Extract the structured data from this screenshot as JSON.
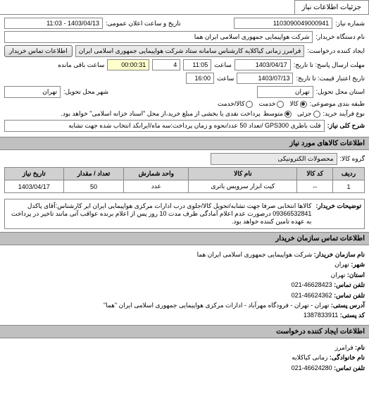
{
  "tabs": {
    "active": "جزئیات اطلاعات نیاز"
  },
  "header": {
    "req_no_label": "شماره نیاز:",
    "req_no": "1103090049000941",
    "public_date_label": "تاریخ و ساعت اعلان عمومی:",
    "public_date": "1403/04/13 - 11:03",
    "buyer_label": "نام دستگاه خریدار:",
    "buyer": "شرکت هواپیمایی جمهوری اسلامی ایران هما",
    "creator_label": "ایجاد کننده درخواست:",
    "creator": "فرامرز زمانی کیاکلایه کارشناس سامانه ستاد شرکت هواپیمایی جمهوری اسلامی ایران",
    "contact_btn": "اطلاعات تماس خریدار"
  },
  "dates": {
    "deadline_to_label": "مهلت ارسال پاسخ: تا تاریخ:",
    "deadline_date": "1403/04/17",
    "deadline_time_label": "ساعت",
    "deadline_time": "11:05",
    "days_label": "",
    "days": "4",
    "remain_label": "ساعت باقی مانده",
    "remain_time": "00:00:31",
    "validity_label": "تاریخ اعتبار قیمت: تا تاریخ:",
    "validity_date": "1403/07/13",
    "validity_time_label": "ساعت",
    "validity_time": "16:00"
  },
  "location": {
    "delivery_province_label": "استان محل تحویل:",
    "delivery_province": "تهران",
    "delivery_city_label": "شهر محل تحویل:",
    "delivery_city": "تهران"
  },
  "classification": {
    "grouping_label": "طبقه بندی موضوعی:",
    "options": [
      {
        "label": "کالا",
        "checked": true
      },
      {
        "label": "خدمت",
        "checked": false
      },
      {
        "label": "کالا/خدمت",
        "checked": false
      }
    ],
    "need_type_label": "نوع فرآیند خرید:",
    "need_options": [
      {
        "label": "جزئی",
        "checked": false
      },
      {
        "label": "متوسط",
        "checked": true
      }
    ],
    "note": "پرداخت نقدی یا بخشی از مبلغ خرید،از محل \"اسناد خزانه اسلامی\" خواهد بود."
  },
  "keywords": {
    "label": "شرح کلی نیاز:",
    "value": "فلت باطری GPS300 /تعداد 50 عدد/نحوه و زمان پرداخت:سه ماه/ایرانکد انتخاب شده جهت تشابه"
  },
  "items_section_title": "اطلاعات کالاهای مورد نیاز",
  "items": {
    "group_label": "گروه کالا:",
    "group_value": "محصولات الکترونیکی",
    "table": {
      "headers": [
        "ردیف",
        "کد کالا",
        "نام کالا",
        "واحد شمارش",
        "تعداد / مقدار",
        "تاریخ نیاز"
      ],
      "rows": [
        {
          "index": "1",
          "code": "--",
          "name": "کیت ابزار سرویس باتری",
          "unit": "عدد",
          "qty": "50",
          "date": "1403/04/17"
        }
      ]
    }
  },
  "buyer_desc": {
    "label": "توضیحات خریدار:",
    "text": "کالاها انتخابی صرفا جهت تشابه/تحویل کالا/جلوی درب ادارات مرکزی هواپیمایی ایران ایر کارشناس:آقای پاکدل 09366532841 درصورت عدم اعلام آمادگی ظرف مدت 10 روز پس از اعلام برنده عواقب آتی مانند تاخیر در پرداخت به عهده تامین کننده خواهد بود."
  },
  "org_contact": {
    "title": "اطلاعات تماس سازمان خریدار",
    "org_label": "نام سازمان خریدار:",
    "org": "شرکت هواپیمایی جمهوری اسلامی ایران هما",
    "city_label": "شهر:",
    "city": "تهران",
    "province_label": "استان:",
    "province": "تهران",
    "phone_label": "تلفن تماس:",
    "phone": "46628423-021",
    "fax_label": "تلفن تماس:",
    "fax": "46624362-021",
    "addr_label": "آدرس پستی:",
    "addr": "تهران - تهران - فرودگاه مهرآباد - ادارات مرکزی هواپیمایی جمهوری اسلامی ایران \"هما\"",
    "post_label": "کد پستی:",
    "post": "1387833911"
  },
  "creator_contact": {
    "title": "اطلاعات ایجاد کننده درخواست",
    "name_label": "نام:",
    "name": "فرامرز",
    "family_label": "نام خانوادگی:",
    "family": "زمانی کیاکلایه",
    "phone_label": "تلفن تماس:",
    "phone": "46624280-021"
  },
  "colors": {
    "border": "#888888",
    "header_bg": "#c0c0c0",
    "tab_bg": "#d0d0d0",
    "field_gray": "#e8e8e8"
  }
}
